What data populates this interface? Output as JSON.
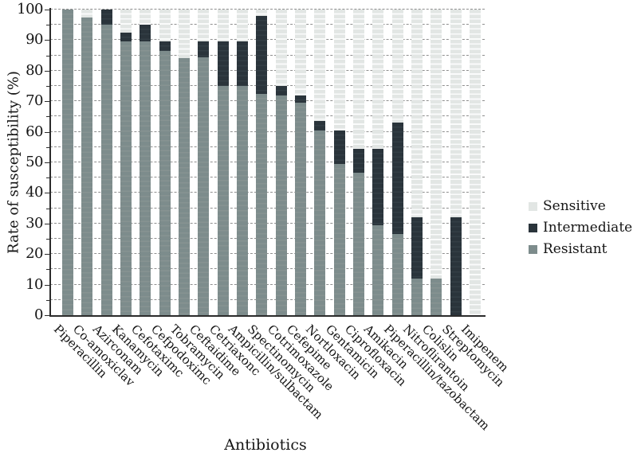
{
  "figure": {
    "y_axis": {
      "title": "Rate of susceptibility (%)",
      "tick_labels": [
        "0",
        "10",
        "20",
        "30",
        "40",
        "50",
        "60",
        "70",
        "80",
        "90",
        "100"
      ],
      "min": 0,
      "max": 100,
      "major_step": 10,
      "minor_step": 5
    },
    "x_axis": {
      "title": "Antibiotics"
    },
    "legend": [
      {
        "label": "Sensitive",
        "color": "#e2e6e4"
      },
      {
        "label": "Intermediate",
        "color": "#2a343b"
      },
      {
        "label": "Resistant",
        "color": "#7d8c8c"
      }
    ],
    "axis_color": "#2b2b2b",
    "gridline_color": "#8f8f8f"
  },
  "chart_data": {
    "type": "bar",
    "stacked": true,
    "title": "",
    "xlabel": "Antibiotics",
    "ylabel": "Rate of susceptibility (%)",
    "unit": "%",
    "ylim": [
      0,
      100
    ],
    "gridlines": "horizontal dashed, every 5 units",
    "gridline_step": 5,
    "legend_position": "right",
    "categories": [
      "Piperacillin",
      "Co-amoxiclav",
      "Azirconam",
      "Kanamycin",
      "Cefotaximc",
      "Cefpodoximc",
      "Tobramycin",
      "Ceftaidime",
      "Cetriaxonc",
      "Ampicillin/sulbactam",
      "Spectinomycin",
      "Cotrimoxazole",
      "Cefepime",
      "Nortloxacin",
      "Gentamicin",
      "Ciprofloxacin",
      "Amikacin",
      "Piperacillin/tazobactam",
      "Nitroflirantoin",
      "Colislin",
      "Streptomycin",
      "Imipenem"
    ],
    "series": [
      {
        "name": "Resistant",
        "color": "#7d8c8c",
        "values": [
          100,
          97.5,
          95,
          89.5,
          89.5,
          86.5,
          84,
          84.5,
          75,
          75,
          72.5,
          72,
          69.5,
          60.5,
          49.5,
          46.5,
          29.5,
          26.5,
          12,
          12,
          0,
          0
        ]
      },
      {
        "name": "Intermediate",
        "color": "#2a343b",
        "values": [
          0,
          0,
          5,
          3,
          5.5,
          3,
          0,
          5,
          14.5,
          14.5,
          25.5,
          3,
          2.5,
          3,
          11,
          8,
          25,
          36.5,
          20,
          0,
          32,
          0
        ]
      },
      {
        "name": "Sensitive",
        "color": "#e2e6e4",
        "values": [
          0,
          2.5,
          0,
          7.5,
          5,
          10.5,
          16,
          10.5,
          10.5,
          10.5,
          2,
          25,
          28,
          36.5,
          39.5,
          45.5,
          45.5,
          37,
          68,
          88,
          68,
          100
        ]
      }
    ]
  }
}
